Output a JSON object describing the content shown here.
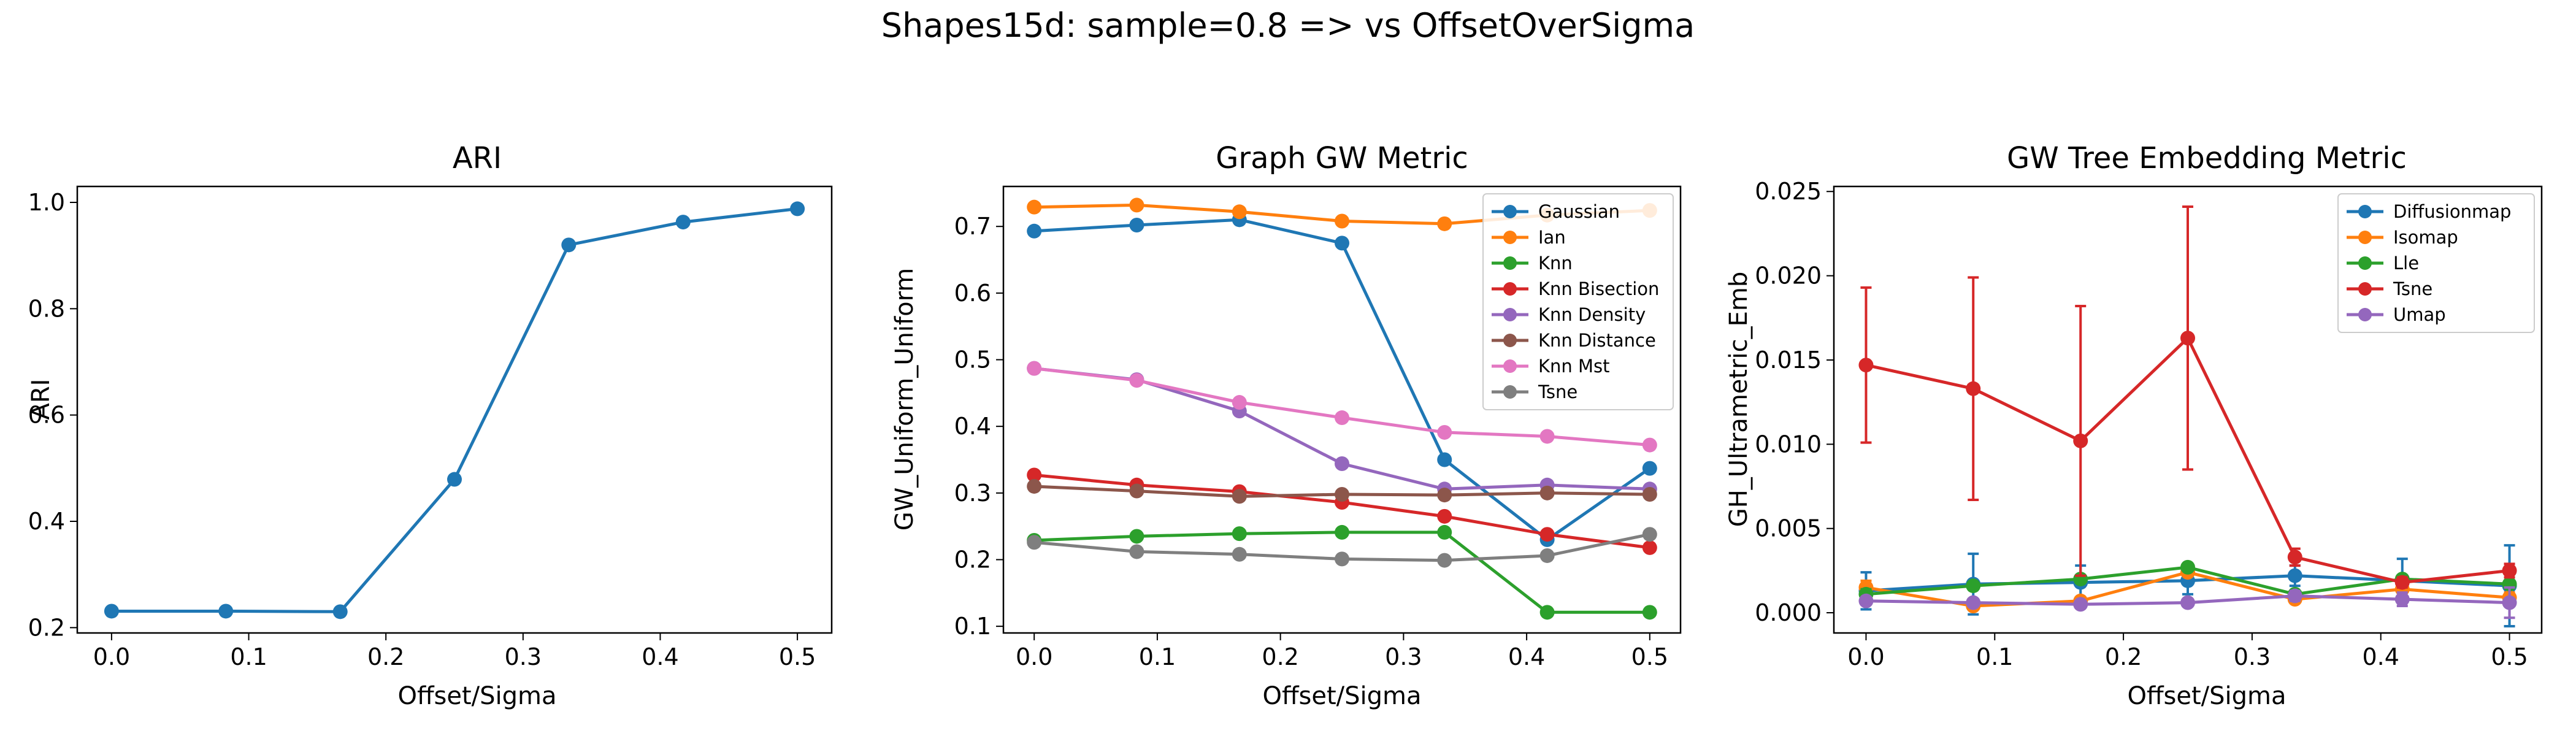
{
  "figure": {
    "title": "Shapes15d: sample=0.8 => vs OffsetOverSigma"
  },
  "chart_data": [
    {
      "type": "line",
      "title": "ARI",
      "xlabel": "Offset/Sigma",
      "ylabel": "ARI",
      "xlim": [
        -0.025,
        0.525
      ],
      "ylim": [
        0.19,
        1.03
      ],
      "xticks": [
        "0.0",
        "0.1",
        "0.2",
        "0.3",
        "0.4",
        "0.5"
      ],
      "yticks": [
        "0.2",
        "0.4",
        "0.6",
        "0.8",
        "1.0"
      ],
      "grid": false,
      "x": [
        0,
        0.0833,
        0.1667,
        0.25,
        0.3333,
        0.4167,
        0.5
      ],
      "series": [
        {
          "color": "#1f77b4",
          "values": [
            0.231,
            0.231,
            0.23,
            0.479,
            0.92,
            0.963,
            0.988
          ]
        }
      ]
    },
    {
      "type": "line",
      "title": "Graph GW Metric",
      "xlabel": "Offset/Sigma",
      "ylabel": "GW_Uniform_Uniform",
      "xlim": [
        -0.025,
        0.525
      ],
      "ylim": [
        0.09,
        0.76
      ],
      "xticks": [
        "0.0",
        "0.1",
        "0.2",
        "0.3",
        "0.4",
        "0.5"
      ],
      "yticks": [
        "0.1",
        "0.2",
        "0.3",
        "0.4",
        "0.5",
        "0.6",
        "0.7"
      ],
      "grid": false,
      "legend": "top-right",
      "x": [
        0,
        0.0833,
        0.1667,
        0.25,
        0.3333,
        0.4167,
        0.5
      ],
      "series": [
        {
          "name": "Gaussian",
          "color": "#1f77b4",
          "values": [
            0.693,
            0.702,
            0.71,
            0.675,
            0.35,
            0.23,
            0.337
          ]
        },
        {
          "name": "Ian",
          "color": "#ff7f0e",
          "values": [
            0.729,
            0.732,
            0.722,
            0.708,
            0.704,
            0.717,
            0.724
          ]
        },
        {
          "name": "Knn",
          "color": "#2ca02c",
          "values": [
            0.229,
            0.235,
            0.239,
            0.241,
            0.241,
            0.121,
            0.121
          ]
        },
        {
          "name": "Knn Bisection",
          "color": "#d62728",
          "values": [
            0.327,
            0.312,
            0.302,
            0.286,
            0.265,
            0.238,
            0.218
          ]
        },
        {
          "name": "Knn Density",
          "color": "#9467bd",
          "values": [
            0.487,
            0.47,
            0.423,
            0.344,
            0.306,
            0.312,
            0.306
          ]
        },
        {
          "name": "Knn Distance",
          "color": "#8c564b",
          "values": [
            0.31,
            0.303,
            0.295,
            0.298,
            0.297,
            0.3,
            0.298
          ]
        },
        {
          "name": "Knn Mst",
          "color": "#e377c2",
          "values": [
            0.487,
            0.469,
            0.436,
            0.413,
            0.391,
            0.385,
            0.372
          ]
        },
        {
          "name": "Tsne",
          "color": "#7f7f7f",
          "values": [
            0.226,
            0.212,
            0.208,
            0.201,
            0.199,
            0.206,
            0.238
          ]
        }
      ]
    },
    {
      "type": "line",
      "title": "GW Tree Embedding Metric",
      "xlabel": "Offset/Sigma",
      "ylabel": "GH_Ultrametric_Emb",
      "xlim": [
        -0.025,
        0.525
      ],
      "ylim": [
        -0.0012,
        0.0253
      ],
      "xticks": [
        "0.0",
        "0.1",
        "0.2",
        "0.3",
        "0.4",
        "0.5"
      ],
      "yticks": [
        "0.000",
        "0.005",
        "0.010",
        "0.015",
        "0.020",
        "0.025"
      ],
      "grid": false,
      "legend": "top-right",
      "x": [
        0,
        0.0833,
        0.1667,
        0.25,
        0.3333,
        0.4167,
        0.5
      ],
      "series": [
        {
          "name": "Diffusionmap",
          "color": "#1f77b4",
          "values": [
            0.0013,
            0.0017,
            0.0018,
            0.0019,
            0.0022,
            0.0019,
            0.0016
          ],
          "errors": [
            0.0011,
            0.0018,
            0.001,
            0.0008,
            0.0006,
            0.0013,
            0.0024
          ]
        },
        {
          "name": "Isomap",
          "color": "#ff7f0e",
          "values": [
            0.0015,
            0.0004,
            0.0007,
            0.0024,
            0.0008,
            0.0014,
            0.0009
          ],
          "errors": [
            0.0004,
            0.0002,
            0.0002,
            0.0002,
            0.0002,
            0.0002,
            0.0003
          ]
        },
        {
          "name": "Lle",
          "color": "#2ca02c",
          "values": [
            0.0011,
            0.0016,
            0.002,
            0.0027,
            0.0011,
            0.002,
            0.0017
          ],
          "errors": [
            0.0003,
            0.0002,
            0.0002,
            0.0002,
            0.0002,
            0.0002,
            0.0002
          ]
        },
        {
          "name": "Tsne",
          "color": "#d62728",
          "values": [
            0.0147,
            0.0133,
            0.0102,
            0.0163,
            0.0033,
            0.0018,
            0.0025
          ],
          "errors": [
            0.0046,
            0.0066,
            0.008,
            0.0078,
            0.0005,
            0.0003,
            0.0004
          ]
        },
        {
          "name": "Umap",
          "color": "#9467bd",
          "values": [
            0.0007,
            0.0006,
            0.0005,
            0.0006,
            0.001,
            0.0008,
            0.0006
          ],
          "errors": [
            0.0002,
            0.0002,
            0.0002,
            0.0002,
            0.0003,
            0.0004,
            0.0009
          ]
        }
      ]
    }
  ]
}
